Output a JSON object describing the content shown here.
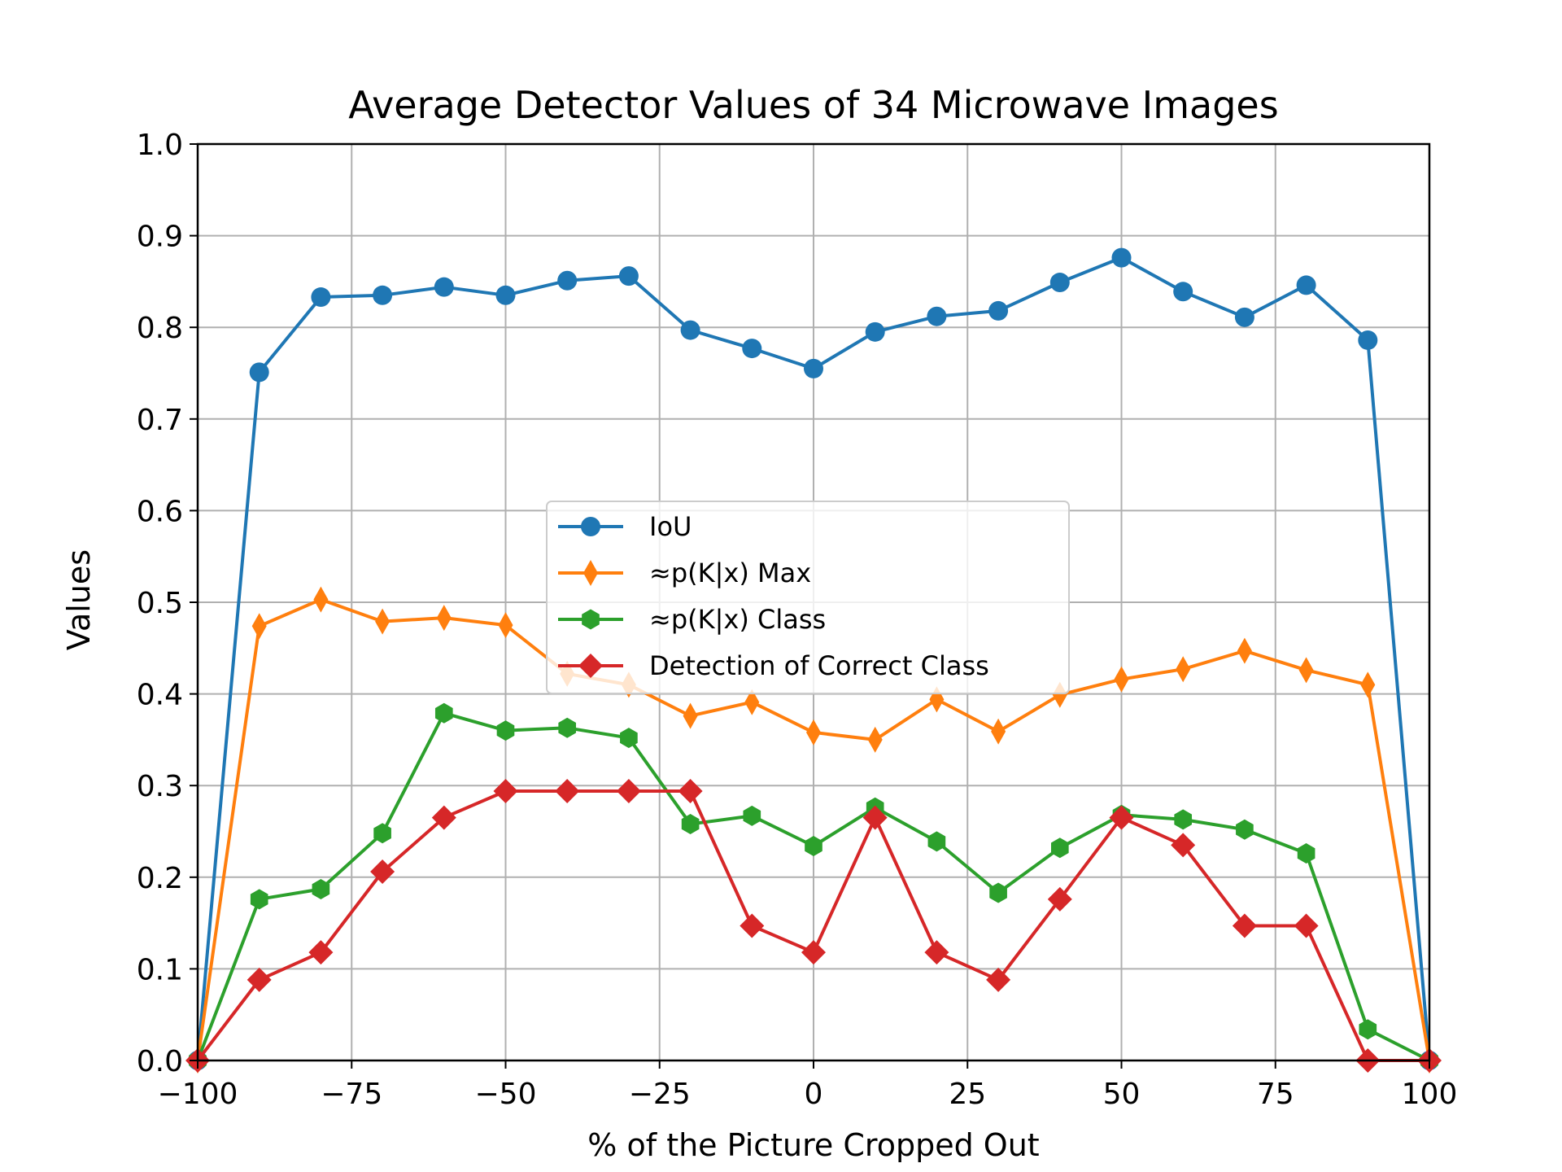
{
  "chart_data": {
    "type": "line",
    "title": "Average Detector Values of 34 Microwave Images",
    "xlabel": "% of the Picture Cropped Out",
    "ylabel": "Values",
    "xlim": [
      -100,
      100
    ],
    "ylim": [
      0.0,
      1.0
    ],
    "grid": true,
    "legend_position": "center",
    "x_ticks": [
      "−100",
      "−75",
      "−50",
      "−25",
      "0",
      "25",
      "50",
      "75",
      "100"
    ],
    "x_tick_values": [
      -100,
      -75,
      -50,
      -25,
      0,
      25,
      50,
      75,
      100
    ],
    "y_ticks": [
      "0.0",
      "0.1",
      "0.2",
      "0.3",
      "0.4",
      "0.5",
      "0.6",
      "0.7",
      "0.8",
      "0.9",
      "1.0"
    ],
    "y_tick_values": [
      0.0,
      0.1,
      0.2,
      0.3,
      0.4,
      0.5,
      0.6,
      0.7,
      0.8,
      0.9,
      1.0
    ],
    "x": [
      -100,
      -90,
      -80,
      -70,
      -60,
      -50,
      -40,
      -30,
      -20,
      -10,
      0,
      10,
      20,
      30,
      40,
      50,
      60,
      70,
      80,
      90,
      100
    ],
    "series": [
      {
        "name": "IoU",
        "color": "#1f77b4",
        "marker": "circle",
        "values": [
          0.0,
          0.751,
          0.833,
          0.835,
          0.844,
          0.835,
          0.851,
          0.856,
          0.797,
          0.777,
          0.755,
          0.795,
          0.812,
          0.818,
          0.849,
          0.876,
          0.839,
          0.811,
          0.846,
          0.786,
          0.0
        ]
      },
      {
        "name": "≈p(K|x) Max",
        "color": "#ff7f0e",
        "marker": "thin_diamond",
        "values": [
          0.0,
          0.474,
          0.503,
          0.479,
          0.483,
          0.475,
          0.422,
          0.41,
          0.376,
          0.391,
          0.358,
          0.35,
          0.394,
          0.359,
          0.399,
          0.416,
          0.427,
          0.447,
          0.426,
          0.41,
          0.0
        ]
      },
      {
        "name": "≈p(K|x) Class",
        "color": "#2ca02c",
        "marker": "hexagon",
        "values": [
          0.0,
          0.176,
          0.187,
          0.248,
          0.379,
          0.36,
          0.363,
          0.352,
          0.258,
          0.267,
          0.234,
          0.276,
          0.239,
          0.183,
          0.232,
          0.268,
          0.263,
          0.252,
          0.226,
          0.034,
          0.0
        ]
      },
      {
        "name": "Detection of Correct Class",
        "color": "#d62728",
        "marker": "diamond",
        "values": [
          0.0,
          0.088,
          0.118,
          0.206,
          0.265,
          0.294,
          0.294,
          0.294,
          0.294,
          0.147,
          0.118,
          0.265,
          0.118,
          0.088,
          0.176,
          0.265,
          0.235,
          0.147,
          0.147,
          0.0,
          0.0
        ]
      }
    ]
  }
}
